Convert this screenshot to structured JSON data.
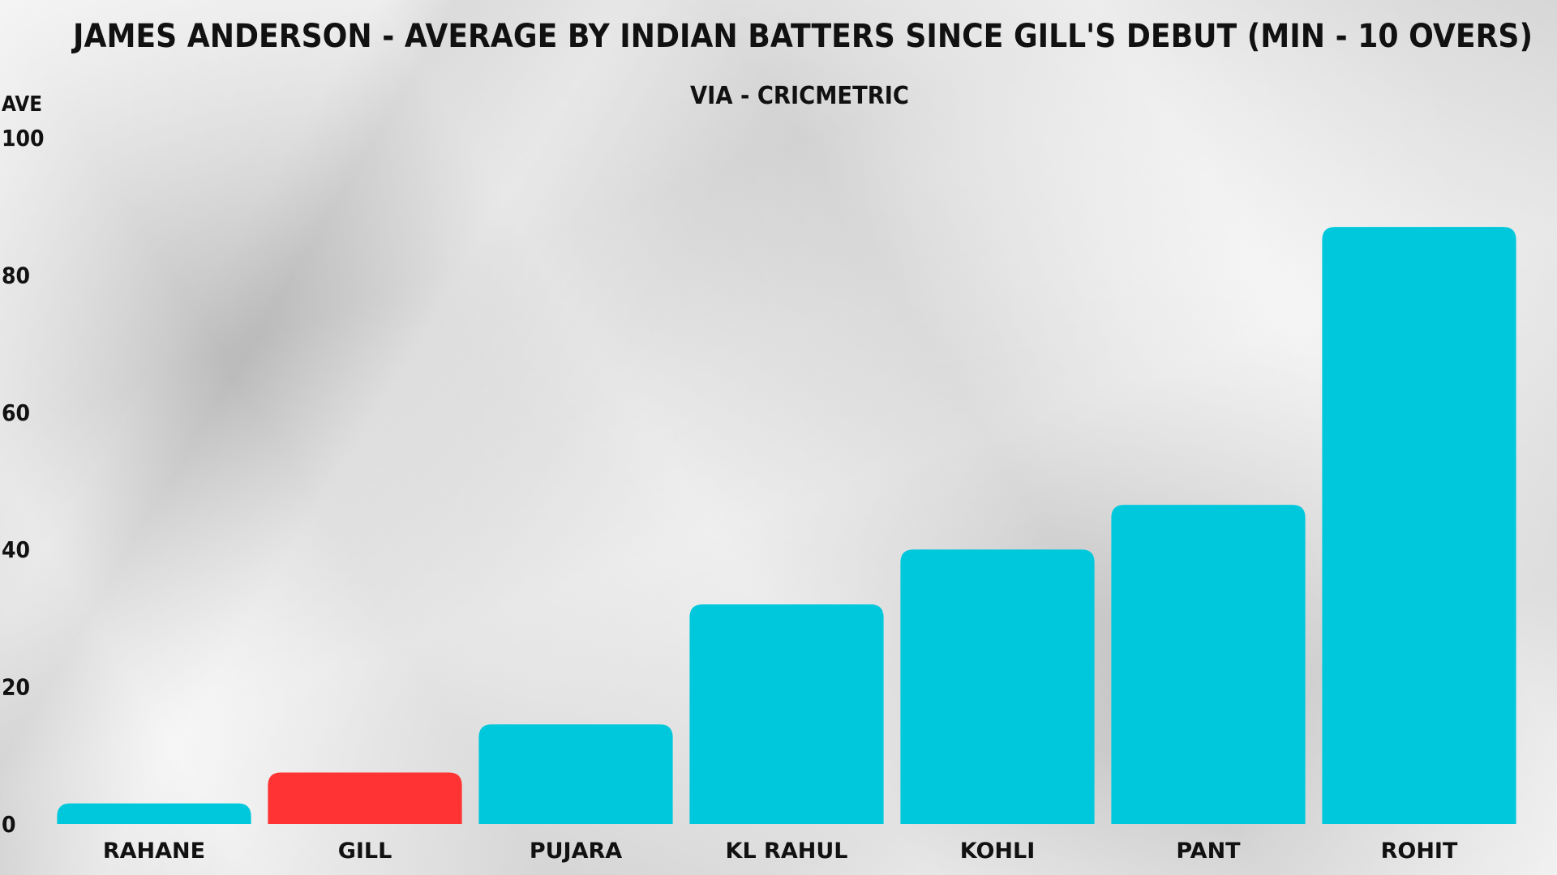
{
  "chart_data": {
    "type": "bar",
    "title": "JAMES ANDERSON - AVERAGE BY INDIAN BATTERS SINCE GILL'S DEBUT (MIN - 10 OVERS)",
    "subtitle": "VIA - CRICMETRIC",
    "ylabel": "AVE",
    "xlabel": "",
    "ylim": [
      0,
      100
    ],
    "yticks": [
      "0",
      "20",
      "40",
      "60",
      "80",
      "100"
    ],
    "categories": [
      "RAHANE",
      "GILL",
      "PUJARA",
      "KL RAHUL",
      "KOHLI",
      "PANT",
      "ROHIT"
    ],
    "values": [
      3,
      7.5,
      14.5,
      32,
      40,
      46.5,
      87
    ],
    "colors": {
      "default": "#00c8dc",
      "highlight": "#ff3333"
    },
    "highlight_category": "GILL",
    "grid": false,
    "legend": "none"
  }
}
